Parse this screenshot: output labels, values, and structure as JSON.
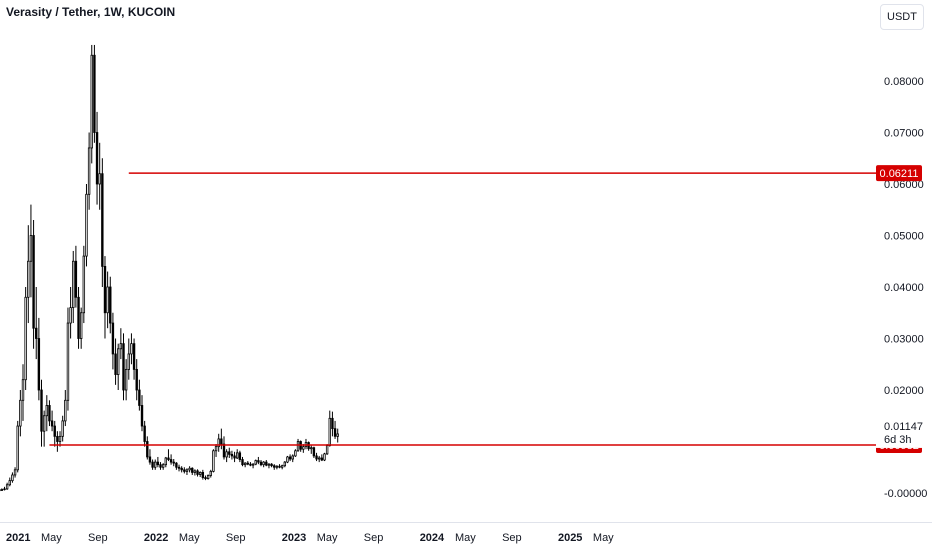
{
  "header": {
    "title": "Verasity / Tether, 1W, KUCOIN"
  },
  "currency_button": {
    "label": "USDT"
  },
  "colors": {
    "line": "#d50000",
    "candle": "#000000",
    "candle_up_fill": "#ffffff",
    "candle_down_fill": "#000000",
    "tag_text": "#ffffff",
    "axis_text": "#131722"
  },
  "chart_data": {
    "type": "candlestick",
    "symbol": "Verasity / Tether",
    "interval": "1W",
    "exchange": "KUCOIN",
    "ylim": [
      -0.0025,
      0.09
    ],
    "y_ticks": [
      "0.08000",
      "0.07000",
      "0.06000",
      "0.05000",
      "0.04000",
      "0.03000",
      "0.02000",
      "0.01000",
      "-0.00000"
    ],
    "y_tick_values": [
      0.08,
      0.07,
      0.06,
      0.05,
      0.04,
      0.03,
      0.02,
      0.01,
      0.0
    ],
    "x_ticks": [
      {
        "label": "2021",
        "date": "2021-01-01",
        "bold": true
      },
      {
        "label": "May",
        "date": "2021-05-01",
        "bold": false
      },
      {
        "label": "Sep",
        "date": "2021-09-01",
        "bold": false
      },
      {
        "label": "2022",
        "date": "2022-01-01",
        "bold": true
      },
      {
        "label": "May",
        "date": "2022-05-01",
        "bold": false
      },
      {
        "label": "Sep",
        "date": "2022-09-01",
        "bold": false
      },
      {
        "label": "2023",
        "date": "2023-01-01",
        "bold": true
      },
      {
        "label": "May",
        "date": "2023-05-01",
        "bold": false
      },
      {
        "label": "Sep",
        "date": "2023-09-01",
        "bold": false
      },
      {
        "label": "2024",
        "date": "2024-01-01",
        "bold": true
      },
      {
        "label": "May",
        "date": "2024-05-01",
        "bold": false
      },
      {
        "label": "Sep",
        "date": "2024-09-01",
        "bold": false
      },
      {
        "label": "2025",
        "date": "2025-01-01",
        "bold": true
      },
      {
        "label": "May",
        "date": "2025-05-01",
        "bold": false
      }
    ],
    "horizontal_lines": [
      {
        "price": 0.06211,
        "label": "0.06211",
        "start_date": "2021-11-22"
      },
      {
        "price": 0.00932,
        "label": "0.00932",
        "start_date": "2021-04-26"
      }
    ],
    "current_price": {
      "value": 0.01147,
      "label": "0.01147",
      "countdown": "6d 3h"
    },
    "start_date": "2020-12-07",
    "candles": [
      [
        0.0007,
        0.0009,
        0.0004,
        0.0006
      ],
      [
        0.0006,
        0.0008,
        0.0004,
        0.0005
      ],
      [
        0.0005,
        0.0009,
        0.0004,
        0.0007
      ],
      [
        0.0007,
        0.0012,
        0.0005,
        0.0008
      ],
      [
        0.0008,
        0.002,
        0.0006,
        0.0016
      ],
      [
        0.0016,
        0.003,
        0.0013,
        0.0024
      ],
      [
        0.0024,
        0.004,
        0.002,
        0.0035
      ],
      [
        0.0035,
        0.005,
        0.003,
        0.0045
      ],
      [
        0.0045,
        0.014,
        0.004,
        0.013
      ],
      [
        0.013,
        0.02,
        0.011,
        0.018
      ],
      [
        0.018,
        0.025,
        0.014,
        0.022
      ],
      [
        0.022,
        0.04,
        0.02,
        0.038
      ],
      [
        0.038,
        0.052,
        0.033,
        0.045
      ],
      [
        0.045,
        0.056,
        0.038,
        0.05
      ],
      [
        0.05,
        0.053,
        0.028,
        0.032
      ],
      [
        0.032,
        0.04,
        0.026,
        0.03
      ],
      [
        0.03,
        0.034,
        0.018,
        0.02
      ],
      [
        0.02,
        0.022,
        0.009,
        0.012
      ],
      [
        0.012,
        0.016,
        0.009,
        0.015
      ],
      [
        0.015,
        0.019,
        0.012,
        0.017
      ],
      [
        0.017,
        0.018,
        0.013,
        0.014
      ],
      [
        0.014,
        0.016,
        0.012,
        0.013
      ],
      [
        0.013,
        0.014,
        0.009,
        0.011
      ],
      [
        0.011,
        0.012,
        0.008,
        0.01
      ],
      [
        0.01,
        0.012,
        0.009,
        0.011
      ],
      [
        0.011,
        0.015,
        0.01,
        0.014
      ],
      [
        0.014,
        0.02,
        0.013,
        0.018
      ],
      [
        0.018,
        0.036,
        0.016,
        0.033
      ],
      [
        0.033,
        0.04,
        0.03,
        0.036
      ],
      [
        0.036,
        0.047,
        0.033,
        0.045
      ],
      [
        0.045,
        0.048,
        0.036,
        0.038
      ],
      [
        0.038,
        0.04,
        0.028,
        0.03
      ],
      [
        0.03,
        0.036,
        0.028,
        0.035
      ],
      [
        0.035,
        0.048,
        0.033,
        0.046
      ],
      [
        0.046,
        0.06,
        0.044,
        0.058
      ],
      [
        0.058,
        0.07,
        0.055,
        0.067
      ],
      [
        0.067,
        0.087,
        0.064,
        0.085
      ],
      [
        0.085,
        0.087,
        0.068,
        0.07
      ],
      [
        0.07,
        0.074,
        0.056,
        0.06
      ],
      [
        0.06,
        0.068,
        0.055,
        0.062
      ],
      [
        0.062,
        0.065,
        0.04,
        0.044
      ],
      [
        0.044,
        0.046,
        0.03,
        0.035
      ],
      [
        0.035,
        0.043,
        0.032,
        0.04
      ],
      [
        0.04,
        0.042,
        0.031,
        0.033
      ],
      [
        0.033,
        0.035,
        0.024,
        0.027
      ],
      [
        0.027,
        0.03,
        0.021,
        0.023
      ],
      [
        0.023,
        0.029,
        0.02,
        0.028
      ],
      [
        0.028,
        0.032,
        0.026,
        0.029
      ],
      [
        0.029,
        0.031,
        0.018,
        0.02
      ],
      [
        0.02,
        0.026,
        0.018,
        0.024
      ],
      [
        0.024,
        0.03,
        0.022,
        0.027
      ],
      [
        0.027,
        0.031,
        0.025,
        0.029
      ],
      [
        0.029,
        0.03,
        0.022,
        0.024
      ],
      [
        0.024,
        0.026,
        0.018,
        0.02
      ],
      [
        0.02,
        0.022,
        0.016,
        0.017
      ],
      [
        0.017,
        0.019,
        0.012,
        0.013
      ],
      [
        0.013,
        0.014,
        0.009,
        0.01
      ],
      [
        0.01,
        0.011,
        0.0065,
        0.007
      ],
      [
        0.007,
        0.0085,
        0.0055,
        0.006
      ],
      [
        0.006,
        0.0065,
        0.0045,
        0.005
      ],
      [
        0.005,
        0.0065,
        0.0045,
        0.006
      ],
      [
        0.006,
        0.007,
        0.005,
        0.0055
      ],
      [
        0.0055,
        0.006,
        0.0045,
        0.005
      ],
      [
        0.005,
        0.0058,
        0.0045,
        0.0055
      ],
      [
        0.0055,
        0.007,
        0.005,
        0.0068
      ],
      [
        0.0068,
        0.0085,
        0.0062,
        0.0065
      ],
      [
        0.0065,
        0.0075,
        0.0055,
        0.006
      ],
      [
        0.006,
        0.0066,
        0.0052,
        0.0058
      ],
      [
        0.0058,
        0.006,
        0.0045,
        0.005
      ],
      [
        0.005,
        0.0055,
        0.0042,
        0.0048
      ],
      [
        0.0048,
        0.0052,
        0.004,
        0.0045
      ],
      [
        0.0045,
        0.005,
        0.0038,
        0.0042
      ],
      [
        0.0042,
        0.0048,
        0.0035,
        0.0045
      ],
      [
        0.0045,
        0.0052,
        0.004,
        0.0048
      ],
      [
        0.0048,
        0.005,
        0.0035,
        0.004
      ],
      [
        0.004,
        0.0046,
        0.0034,
        0.0043
      ],
      [
        0.0043,
        0.0046,
        0.0032,
        0.0036
      ],
      [
        0.0036,
        0.0042,
        0.0031,
        0.004
      ],
      [
        0.004,
        0.0045,
        0.0026,
        0.003
      ],
      [
        0.003,
        0.0034,
        0.0025,
        0.0028
      ],
      [
        0.0028,
        0.0036,
        0.0026,
        0.0034
      ],
      [
        0.0034,
        0.0045,
        0.003,
        0.0042
      ],
      [
        0.0042,
        0.0085,
        0.004,
        0.0082
      ],
      [
        0.0082,
        0.0095,
        0.007,
        0.009
      ],
      [
        0.009,
        0.0115,
        0.008,
        0.0105
      ],
      [
        0.0105,
        0.0125,
        0.0085,
        0.0095
      ],
      [
        0.0095,
        0.011,
        0.0065,
        0.007
      ],
      [
        0.007,
        0.0085,
        0.006,
        0.008
      ],
      [
        0.008,
        0.0088,
        0.0068,
        0.0075
      ],
      [
        0.0075,
        0.0082,
        0.0065,
        0.0072
      ],
      [
        0.0072,
        0.008,
        0.006,
        0.0068
      ],
      [
        0.0068,
        0.0085,
        0.0066,
        0.0078
      ],
      [
        0.0078,
        0.0082,
        0.006,
        0.0065
      ],
      [
        0.0065,
        0.007,
        0.0052,
        0.0055
      ],
      [
        0.0055,
        0.006,
        0.005,
        0.0058
      ],
      [
        0.0058,
        0.0062,
        0.0054,
        0.0056
      ],
      [
        0.0056,
        0.006,
        0.0052,
        0.0054
      ],
      [
        0.0054,
        0.0058,
        0.0048,
        0.0056
      ],
      [
        0.0056,
        0.0065,
        0.0054,
        0.0063
      ],
      [
        0.0063,
        0.007,
        0.0056,
        0.006
      ],
      [
        0.006,
        0.0064,
        0.0052,
        0.0055
      ],
      [
        0.0055,
        0.0062,
        0.005,
        0.006
      ],
      [
        0.006,
        0.0064,
        0.0052,
        0.0054
      ],
      [
        0.0054,
        0.0058,
        0.0048,
        0.0056
      ],
      [
        0.0056,
        0.0058,
        0.005,
        0.0053
      ],
      [
        0.0053,
        0.0056,
        0.0045,
        0.005
      ],
      [
        0.005,
        0.0054,
        0.0046,
        0.0052
      ],
      [
        0.0052,
        0.0056,
        0.0048,
        0.005
      ],
      [
        0.005,
        0.0055,
        0.0046,
        0.0053
      ],
      [
        0.0053,
        0.0062,
        0.005,
        0.006
      ],
      [
        0.006,
        0.0072,
        0.0058,
        0.007
      ],
      [
        0.007,
        0.0075,
        0.0062,
        0.0066
      ],
      [
        0.0066,
        0.0075,
        0.006,
        0.0072
      ],
      [
        0.0072,
        0.0085,
        0.007,
        0.0082
      ],
      [
        0.0082,
        0.0105,
        0.008,
        0.01
      ],
      [
        0.01,
        0.0102,
        0.008,
        0.0085
      ],
      [
        0.0085,
        0.0095,
        0.0078,
        0.009
      ],
      [
        0.009,
        0.0105,
        0.0085,
        0.0098
      ],
      [
        0.0098,
        0.01,
        0.0082,
        0.0086
      ],
      [
        0.0086,
        0.0092,
        0.0076,
        0.0088
      ],
      [
        0.0088,
        0.009,
        0.0068,
        0.0072
      ],
      [
        0.0072,
        0.0078,
        0.0062,
        0.0066
      ],
      [
        0.0066,
        0.0072,
        0.006,
        0.0068
      ],
      [
        0.0068,
        0.0075,
        0.0062,
        0.0064
      ],
      [
        0.0064,
        0.0078,
        0.0062,
        0.0076
      ],
      [
        0.0076,
        0.0095,
        0.0074,
        0.0092
      ],
      [
        0.0092,
        0.016,
        0.009,
        0.0145
      ],
      [
        0.0145,
        0.0158,
        0.011,
        0.0125
      ],
      [
        0.0125,
        0.014,
        0.0105,
        0.011
      ],
      [
        0.011,
        0.0125,
        0.0098,
        0.01147
      ]
    ]
  }
}
